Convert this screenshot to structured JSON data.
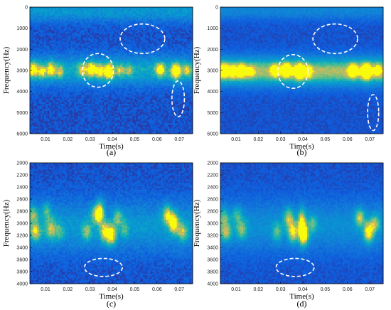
{
  "chart_data": [
    {
      "id": "a",
      "type": "heatmap",
      "caption": "(a)",
      "xlabel": "Time(s)",
      "ylabel": "Frequency(Hz)",
      "xlim": [
        0.003,
        0.076
      ],
      "ylim": [
        0,
        6000
      ],
      "yreversed": true,
      "xticks": [
        0.01,
        0.02,
        0.03,
        0.04,
        0.05,
        0.06,
        0.07
      ],
      "xticklabels": [
        "0.01",
        "0.02",
        "0.03",
        "0.04",
        "0.05",
        "0.06",
        "0.07"
      ],
      "yticks": [
        0,
        1000,
        2000,
        3000,
        4000,
        5000,
        6000
      ],
      "yticklabels": [
        "0",
        "1000",
        "2000",
        "3000",
        "4000",
        "5000",
        "6000"
      ],
      "noise": 0.32,
      "bands": [
        {
          "center": 3000,
          "width": 700
        },
        {
          "center": 200,
          "width": 500,
          "strength": 0.35
        }
      ],
      "blobs": [
        {
          "t": 0.0045,
          "f": 2950,
          "dt": 0.0022,
          "df": 380,
          "a": 0.85
        },
        {
          "t": 0.0085,
          "f": 3050,
          "dt": 0.0018,
          "df": 350,
          "a": 0.7
        },
        {
          "t": 0.0125,
          "f": 2950,
          "dt": 0.002,
          "df": 380,
          "a": 0.78
        },
        {
          "t": 0.0165,
          "f": 3050,
          "dt": 0.0018,
          "df": 320,
          "a": 0.55
        },
        {
          "t": 0.0265,
          "f": 3000,
          "dt": 0.002,
          "df": 350,
          "a": 0.6
        },
        {
          "t": 0.0305,
          "f": 2950,
          "dt": 0.0022,
          "df": 380,
          "a": 0.9
        },
        {
          "t": 0.0345,
          "f": 3050,
          "dt": 0.002,
          "df": 380,
          "a": 0.7
        },
        {
          "t": 0.0385,
          "f": 3050,
          "dt": 0.0022,
          "df": 420,
          "a": 0.95
        },
        {
          "t": 0.0435,
          "f": 3000,
          "dt": 0.002,
          "df": 320,
          "a": 0.5
        },
        {
          "t": 0.0475,
          "f": 3000,
          "dt": 0.0018,
          "df": 300,
          "a": 0.45
        },
        {
          "t": 0.0615,
          "f": 2950,
          "dt": 0.0022,
          "df": 350,
          "a": 0.85
        },
        {
          "t": 0.0685,
          "f": 3050,
          "dt": 0.0022,
          "df": 420,
          "a": 1.0
        },
        {
          "t": 0.0735,
          "f": 3000,
          "dt": 0.0018,
          "df": 320,
          "a": 0.6
        }
      ],
      "ellipses": [
        {
          "cx": 0.0335,
          "cy": 3000,
          "rx": 0.007,
          "ry": 800
        },
        {
          "cx": 0.0535,
          "cy": 1500,
          "rx": 0.01,
          "ry": 700
        },
        {
          "cx": 0.0695,
          "cy": 4350,
          "rx": 0.0028,
          "ry": 850
        }
      ]
    },
    {
      "id": "b",
      "type": "heatmap",
      "caption": "(b)",
      "xlabel": "Time(s)",
      "ylabel": "Frequency(Hz)",
      "xlim": [
        0.003,
        0.076
      ],
      "ylim": [
        0,
        6000
      ],
      "yreversed": true,
      "xticks": [
        0.01,
        0.02,
        0.03,
        0.04,
        0.05,
        0.06,
        0.07
      ],
      "xticklabels": [
        "0.01",
        "0.02",
        "0.03",
        "0.04",
        "0.05",
        "0.06",
        "0.07"
      ],
      "yticks": [
        0,
        1000,
        2000,
        3000,
        4000,
        5000,
        6000
      ],
      "yticklabels": [
        "0",
        "1000",
        "2000",
        "3000",
        "4000",
        "5000",
        "6000"
      ],
      "noise": 0.18,
      "bands": [
        {
          "center": 3050,
          "width": 650,
          "strength": 0.75
        },
        {
          "center": 150,
          "width": 450,
          "strength": 0.25
        }
      ],
      "blobs": [
        {
          "t": 0.0045,
          "f": 3000,
          "dt": 0.002,
          "df": 360,
          "a": 0.8
        },
        {
          "t": 0.0085,
          "f": 3050,
          "dt": 0.0018,
          "df": 330,
          "a": 0.65
        },
        {
          "t": 0.0125,
          "f": 3000,
          "dt": 0.002,
          "df": 360,
          "a": 0.7
        },
        {
          "t": 0.0165,
          "f": 3050,
          "dt": 0.0018,
          "df": 300,
          "a": 0.45
        },
        {
          "t": 0.0275,
          "f": 3000,
          "dt": 0.002,
          "df": 330,
          "a": 0.55
        },
        {
          "t": 0.0325,
          "f": 2950,
          "dt": 0.0022,
          "df": 360,
          "a": 0.85
        },
        {
          "t": 0.0385,
          "f": 3050,
          "dt": 0.0022,
          "df": 400,
          "a": 0.95
        },
        {
          "t": 0.0425,
          "f": 3050,
          "dt": 0.0018,
          "df": 330,
          "a": 0.55
        },
        {
          "t": 0.0625,
          "f": 3000,
          "dt": 0.002,
          "df": 340,
          "a": 0.8
        },
        {
          "t": 0.0685,
          "f": 3050,
          "dt": 0.0022,
          "df": 400,
          "a": 0.95
        },
        {
          "t": 0.0735,
          "f": 3000,
          "dt": 0.0018,
          "df": 300,
          "a": 0.55
        }
      ],
      "ellipses": [
        {
          "cx": 0.0355,
          "cy": 3050,
          "rx": 0.0068,
          "ry": 800
        },
        {
          "cx": 0.0545,
          "cy": 1500,
          "rx": 0.01,
          "ry": 700
        },
        {
          "cx": 0.0715,
          "cy": 5000,
          "rx": 0.0025,
          "ry": 850
        }
      ]
    },
    {
      "id": "c",
      "type": "heatmap",
      "caption": "(c)",
      "xlabel": "Time(s)",
      "ylabel": "Frequency(Hz)",
      "xlim": [
        0.003,
        0.076
      ],
      "ylim": [
        2000,
        4000
      ],
      "yreversed": true,
      "xticks": [
        0.01,
        0.02,
        0.03,
        0.04,
        0.05,
        0.06,
        0.07
      ],
      "xticklabels": [
        "0.01",
        "0.02",
        "0.03",
        "0.04",
        "0.05",
        "0.06",
        "0.07"
      ],
      "yticks": [
        2000,
        2200,
        2400,
        2600,
        2800,
        3000,
        3200,
        3400,
        3600,
        3800,
        4000
      ],
      "yticklabels": [
        "2000",
        "2200",
        "2400",
        "2600",
        "2800",
        "3000",
        "3200",
        "3400",
        "3600",
        "3800",
        "4000"
      ],
      "noise": 0.3,
      "bands": [
        {
          "center": 3050,
          "width": 420,
          "strength": 0.35
        }
      ],
      "blobs": [
        {
          "t": 0.0045,
          "f": 2850,
          "dt": 0.0025,
          "df": 150,
          "a": 0.6
        },
        {
          "t": 0.0055,
          "f": 3150,
          "dt": 0.0025,
          "df": 150,
          "a": 0.75
        },
        {
          "t": 0.0105,
          "f": 2800,
          "dt": 0.0022,
          "df": 140,
          "a": 0.5
        },
        {
          "t": 0.0125,
          "f": 3100,
          "dt": 0.0025,
          "df": 170,
          "a": 0.65
        },
        {
          "t": 0.0165,
          "f": 3150,
          "dt": 0.002,
          "df": 150,
          "a": 0.4
        },
        {
          "t": 0.0285,
          "f": 3150,
          "dt": 0.0022,
          "df": 160,
          "a": 0.55
        },
        {
          "t": 0.0325,
          "f": 2850,
          "dt": 0.0022,
          "df": 150,
          "a": 0.65
        },
        {
          "t": 0.0345,
          "f": 2800,
          "dt": 0.0018,
          "df": 180,
          "a": 0.95
        },
        {
          "t": 0.0365,
          "f": 3150,
          "dt": 0.0022,
          "df": 170,
          "a": 0.75
        },
        {
          "t": 0.0395,
          "f": 3200,
          "dt": 0.0022,
          "df": 170,
          "a": 0.95
        },
        {
          "t": 0.0425,
          "f": 2900,
          "dt": 0.002,
          "df": 150,
          "a": 0.55
        },
        {
          "t": 0.0455,
          "f": 3100,
          "dt": 0.0018,
          "df": 150,
          "a": 0.4
        },
        {
          "t": 0.0645,
          "f": 2850,
          "dt": 0.0022,
          "df": 150,
          "a": 0.8
        },
        {
          "t": 0.0675,
          "f": 3000,
          "dt": 0.0022,
          "df": 170,
          "a": 1.0
        },
        {
          "t": 0.0715,
          "f": 3150,
          "dt": 0.0022,
          "df": 150,
          "a": 0.65
        }
      ],
      "ellipses": [
        {
          "cx": 0.036,
          "cy": 3730,
          "rx": 0.0085,
          "ry": 150
        }
      ]
    },
    {
      "id": "d",
      "type": "heatmap",
      "caption": "(d)",
      "xlabel": "Time(s)",
      "ylabel": "Frequency(Hz)",
      "xlim": [
        0.003,
        0.076
      ],
      "ylim": [
        2000,
        4000
      ],
      "yreversed": true,
      "xticks": [
        0.01,
        0.02,
        0.03,
        0.04,
        0.05,
        0.06,
        0.07
      ],
      "xticklabels": [
        "0.01",
        "0.02",
        "0.03",
        "0.04",
        "0.05",
        "0.06",
        "0.07"
      ],
      "yticks": [
        2000,
        2200,
        2400,
        2600,
        2800,
        3000,
        3200,
        3400,
        3600,
        3800,
        4000
      ],
      "yticklabels": [
        "2000",
        "2200",
        "2400",
        "2600",
        "2800",
        "3000",
        "3200",
        "3400",
        "3600",
        "3800",
        "4000"
      ],
      "noise": 0.22,
      "bands": [
        {
          "center": 3050,
          "width": 420,
          "strength": 0.3
        }
      ],
      "blobs": [
        {
          "t": 0.0045,
          "f": 2900,
          "dt": 0.0025,
          "df": 150,
          "a": 0.55
        },
        {
          "t": 0.0055,
          "f": 3150,
          "dt": 0.0025,
          "df": 150,
          "a": 0.7
        },
        {
          "t": 0.0105,
          "f": 2850,
          "dt": 0.0022,
          "df": 140,
          "a": 0.45
        },
        {
          "t": 0.0125,
          "f": 3100,
          "dt": 0.0025,
          "df": 170,
          "a": 0.6
        },
        {
          "t": 0.0285,
          "f": 3150,
          "dt": 0.0022,
          "df": 160,
          "a": 0.5
        },
        {
          "t": 0.0335,
          "f": 2900,
          "dt": 0.0022,
          "df": 160,
          "a": 0.7
        },
        {
          "t": 0.0355,
          "f": 3150,
          "dt": 0.0022,
          "df": 180,
          "a": 0.85
        },
        {
          "t": 0.0395,
          "f": 3000,
          "dt": 0.0018,
          "df": 250,
          "a": 0.9
        },
        {
          "t": 0.0405,
          "f": 3200,
          "dt": 0.0022,
          "df": 180,
          "a": 1.0
        },
        {
          "t": 0.0445,
          "f": 3000,
          "dt": 0.002,
          "df": 150,
          "a": 0.5
        },
        {
          "t": 0.0655,
          "f": 2900,
          "dt": 0.0022,
          "df": 150,
          "a": 0.75
        },
        {
          "t": 0.0695,
          "f": 3150,
          "dt": 0.0022,
          "df": 180,
          "a": 1.0
        },
        {
          "t": 0.0725,
          "f": 3000,
          "dt": 0.002,
          "df": 150,
          "a": 0.6
        }
      ],
      "ellipses": [
        {
          "cx": 0.0365,
          "cy": 3730,
          "rx": 0.0085,
          "ry": 150
        }
      ]
    }
  ]
}
